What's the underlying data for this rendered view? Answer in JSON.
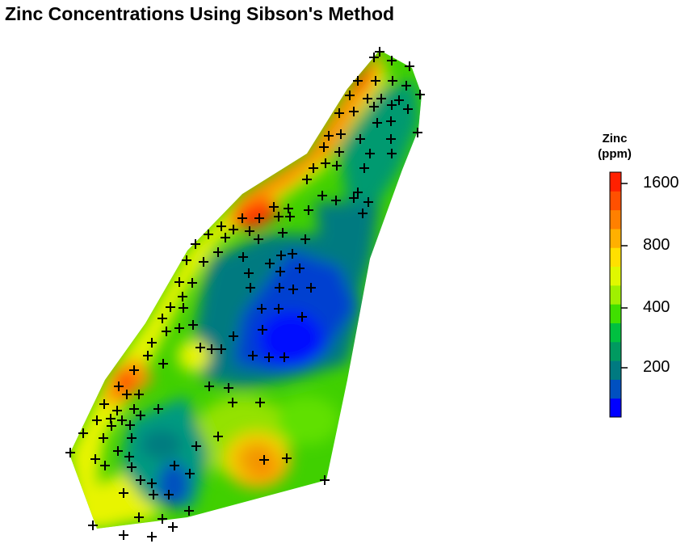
{
  "title": "Zinc Concentrations Using Sibson's Method",
  "legend": {
    "title_line1": "Zinc",
    "title_line2": "(ppm)",
    "ticks": [
      "1600",
      "800",
      "400",
      "200"
    ],
    "colors": [
      "#0000ff",
      "#0050c0",
      "#007a80",
      "#009a60",
      "#00c040",
      "#40e000",
      "#a0f000",
      "#e0f800",
      "#ffe000",
      "#ffb000",
      "#ff8000",
      "#ff5000",
      "#ff2000"
    ]
  }
}
